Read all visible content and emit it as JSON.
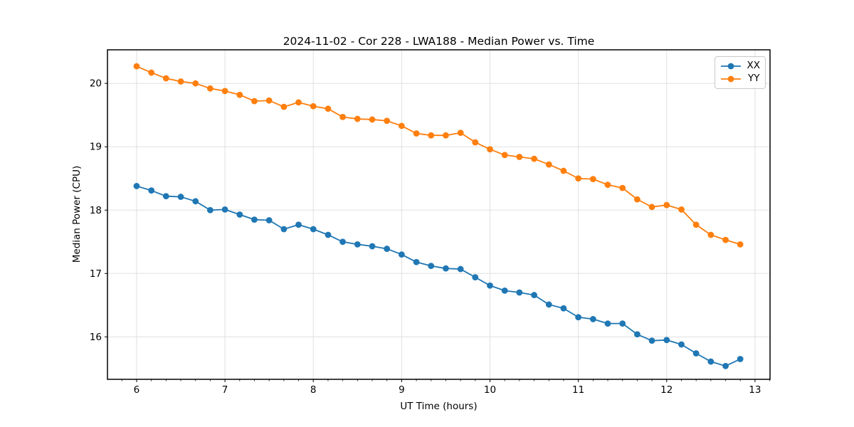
{
  "window": {
    "background": "#ffffff"
  },
  "chart_data": {
    "type": "line",
    "title": "2024-11-02 - Cor 228 - LWA188 - Median Power vs. Time",
    "xlabel": "UT Time (hours)",
    "ylabel": "Median Power (CPU)",
    "x": [
      6.0,
      6.167,
      6.333,
      6.5,
      6.667,
      6.833,
      7.0,
      7.167,
      7.333,
      7.5,
      7.667,
      7.833,
      8.0,
      8.167,
      8.333,
      8.5,
      8.667,
      8.833,
      9.0,
      9.167,
      9.333,
      9.5,
      9.667,
      9.833,
      10.0,
      10.167,
      10.333,
      10.5,
      10.667,
      10.833,
      11.0,
      11.167,
      11.333,
      11.5,
      11.667,
      11.833,
      12.0,
      12.167,
      12.333,
      12.5,
      12.667,
      12.833
    ],
    "series": [
      {
        "name": "XX",
        "color": "#1f77b4",
        "values": [
          18.38,
          18.31,
          18.22,
          18.21,
          18.14,
          18.0,
          18.01,
          17.93,
          17.85,
          17.84,
          17.7,
          17.77,
          17.7,
          17.61,
          17.5,
          17.46,
          17.43,
          17.39,
          17.3,
          17.18,
          17.12,
          17.08,
          17.07,
          16.94,
          16.81,
          16.73,
          16.7,
          16.66,
          16.51,
          16.45,
          16.31,
          16.28,
          16.21,
          16.21,
          16.04,
          15.94,
          15.95,
          15.88,
          15.74,
          15.61,
          15.54,
          15.65
        ]
      },
      {
        "name": "YY",
        "color": "#ff7f0e",
        "values": [
          20.27,
          20.17,
          20.08,
          20.03,
          20.0,
          19.92,
          19.88,
          19.82,
          19.72,
          19.73,
          19.63,
          19.7,
          19.64,
          19.6,
          19.47,
          19.44,
          19.43,
          19.41,
          19.33,
          19.21,
          19.18,
          19.18,
          19.22,
          19.07,
          18.96,
          18.87,
          18.84,
          18.81,
          18.72,
          18.62,
          18.5,
          18.49,
          18.4,
          18.35,
          18.17,
          18.05,
          18.08,
          18.01,
          17.77,
          17.61,
          17.53,
          17.46
        ]
      }
    ],
    "xticks": [
      6,
      7,
      8,
      9,
      10,
      11,
      12,
      13
    ],
    "yticks": [
      16,
      17,
      18,
      19,
      20
    ],
    "x_minor_step": 0.16667,
    "xlim": [
      5.67,
      13.17
    ],
    "ylim": [
      15.33,
      20.53
    ],
    "grid": true,
    "grid_color": "#e0e0e0",
    "spine_color": "#000000",
    "legend_position": "upper right",
    "marker": "circle"
  }
}
